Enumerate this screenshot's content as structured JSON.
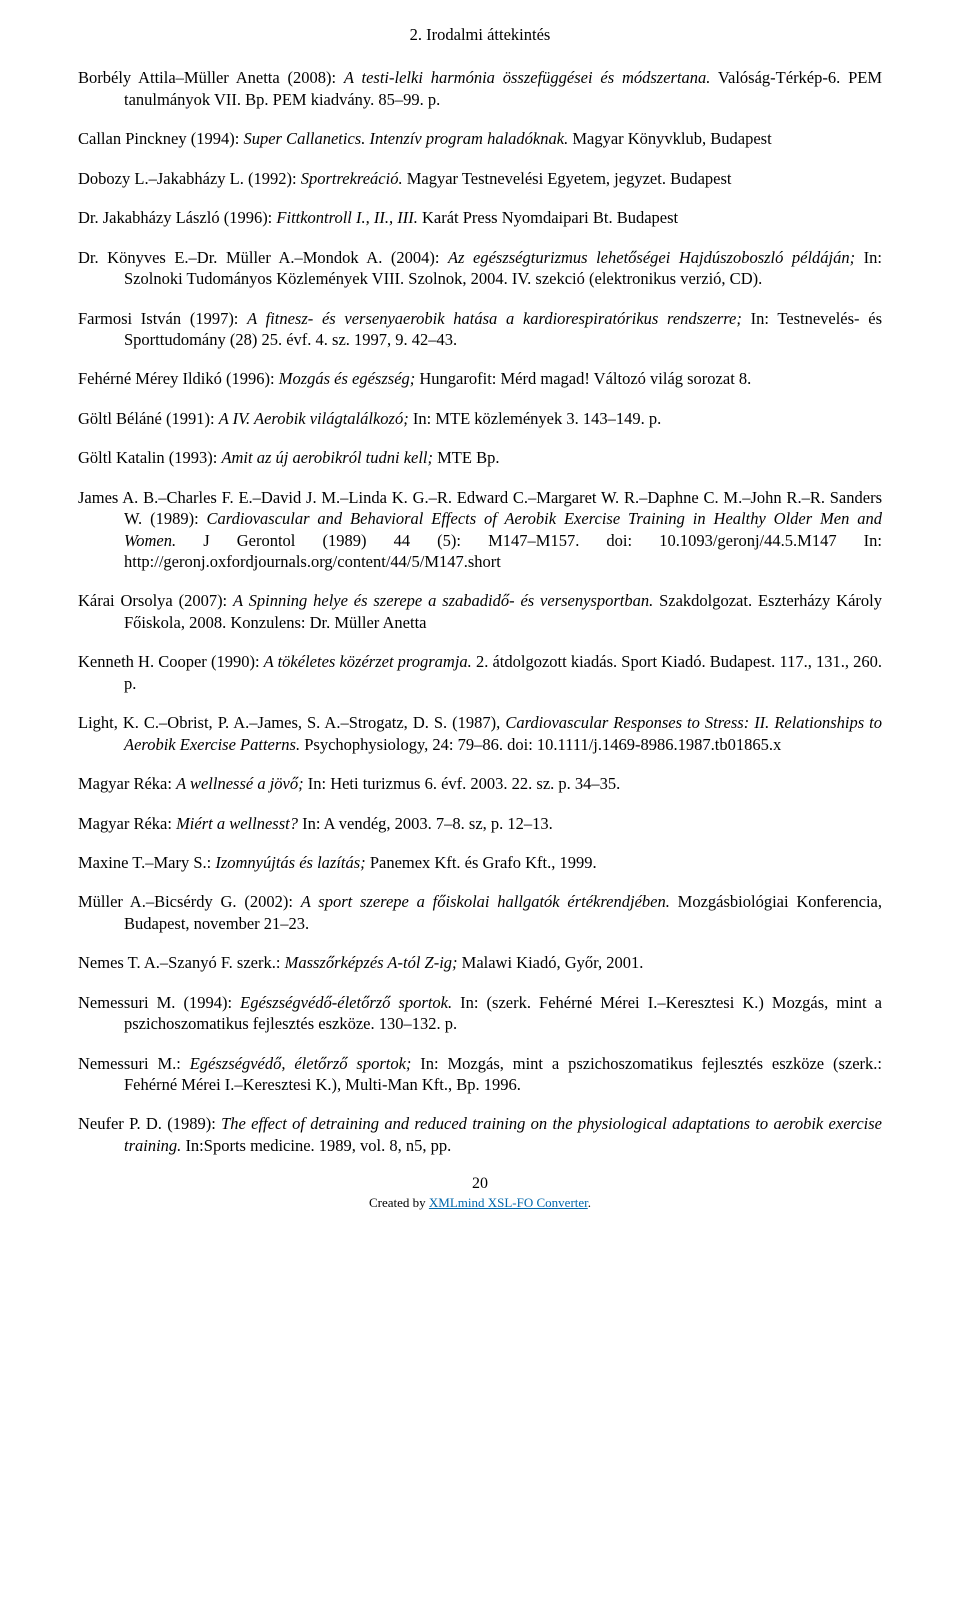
{
  "chapter_title": "2. Irodalmi áttekintés",
  "refs": [
    {
      "pre": "Borbély Attila–Müller Anetta (2008): ",
      "ital": "A testi-lelki harmónia összefüggései és módszertana.",
      "post": " Valóság-Térkép-6. PEM tanulmányok VII. Bp. PEM kiadvány. 85–99. p."
    },
    {
      "pre": "Callan Pinckney (1994): ",
      "ital": "Super Callanetics. Intenzív program haladóknak.",
      "post": " Magyar Könyvklub, Budapest"
    },
    {
      "pre": "Dobozy L.–Jakabházy L. (1992): ",
      "ital": "Sportrekreáció.",
      "post": " Magyar Testnevelési Egyetem, jegyzet. Budapest"
    },
    {
      "pre": "Dr. Jakabházy László (1996): ",
      "ital": "Fittkontroll I., II., III.",
      "post": " Karát Press Nyomdaipari Bt. Budapest"
    },
    {
      "pre": "Dr. Könyves E.–Dr. Müller A.–Mondok A. (2004): ",
      "ital": "Az egészségturizmus lehetőségei Hajdúszoboszló példáján;",
      "post": " In: Szolnoki Tudományos Közlemények VIII. Szolnok, 2004. IV. szekció (elektronikus verzió, CD)."
    },
    {
      "pre": "Farmosi István (1997): ",
      "ital": "A fitnesz- és versenyaerobik hatása a kardiorespiratórikus rendszerre;",
      "post": " In: Testnevelés- és Sporttudomány (28) 25. évf. 4. sz. 1997, 9. 42–43."
    },
    {
      "pre": "Fehérné Mérey Ildikó (1996): ",
      "ital": "Mozgás és egészség;",
      "post": " Hungarofit: Mérd magad! Változó világ sorozat 8."
    },
    {
      "pre": "Göltl Béláné (1991): ",
      "ital": "A IV. Aerobik világtalálkozó;",
      "post": " In: MTE közlemények 3. 143–149. p."
    },
    {
      "pre": "Göltl Katalin (1993): ",
      "ital": "Amit az új aerobikról tudni kell;",
      "post": " MTE Bp."
    },
    {
      "pre": "James A. B.–Charles F. E.–David J. M.–Linda K. G.–R. Edward C.–Margaret W. R.–Daphne C. M.–John R.–R. Sanders W. (1989): ",
      "ital": "Cardiovascular and Behavioral Effects of Aerobik Exercise Training in Healthy Older Men and Women.",
      "post": " J Gerontol (1989) 44 (5): M147–M157. doi: 10.1093/geronj/44.5.M147 In: http://geronj.oxfordjournals.org/content/44/5/M147.short"
    },
    {
      "pre": "Kárai Orsolya (2007): ",
      "ital": "A Spinning helye és szerepe a szabadidő- és versenysportban.",
      "post": " Szakdolgozat. Eszterházy Károly Főiskola, 2008. Konzulens: Dr. Müller Anetta"
    },
    {
      "pre": "Kenneth H. Cooper (1990): ",
      "ital": "A tökéletes közérzet programja.",
      "post": " 2. átdolgozott kiadás. Sport Kiadó. Budapest. 117., 131., 260. p."
    },
    {
      "pre": "Light, K. C.–Obrist, P. A.–James, S. A.–Strogatz, D. S. (1987), ",
      "ital": "Cardiovascular Responses to Stress: II. Relationships to Aerobik Exercise Patterns.",
      "post": " Psychophysiology, 24: 79–86. doi: 10.1111/j.1469-8986.1987.tb01865.x"
    },
    {
      "pre": "Magyar Réka: ",
      "ital": "A wellnessé a jövő;",
      "post": " In: Heti turizmus 6. évf. 2003. 22. sz. p. 34–35."
    },
    {
      "pre": "Magyar Réka: ",
      "ital": "Miért a wellnesst?",
      "post": " In: A vendég, 2003. 7–8. sz, p. 12–13."
    },
    {
      "pre": "Maxine T.–Mary S.: ",
      "ital": "Izomnyújtás és lazítás;",
      "post": " Panemex Kft. és Grafo Kft., 1999."
    },
    {
      "pre": "Müller A.–Bicsérdy G. (2002): ",
      "ital": "A sport szerepe a főiskolai hallgatók értékrendjében.",
      "post": " Mozgásbiológiai Konferencia, Budapest, november 21–23."
    },
    {
      "pre": "Nemes T. A.–Szanyó F. szerk.: ",
      "ital": "Masszőrképzés A-tól Z-ig;",
      "post": " Malawi Kiadó, Győr, 2001."
    },
    {
      "pre": "Nemessuri M. (1994): ",
      "ital": "Egészségvédő-életőrző sportok.",
      "post": " In: (szerk. Fehérné Mérei I.–Keresztesi K.) Mozgás, mint a pszichoszomatikus fejlesztés eszköze. 130–132. p."
    },
    {
      "pre": "Nemessuri M.: ",
      "ital": "Egészségvédő, életőrző sportok;",
      "post": " In: Mozgás, mint a pszichoszomatikus fejlesztés eszköze (szerk.: Fehérné Mérei I.–Keresztesi K.), Multi-Man Kft., Bp. 1996."
    },
    {
      "pre": "Neufer P. D. (1989): ",
      "ital": "The effect of detraining and reduced training on the physiological adaptations to aerobik exercise training.",
      "post": " In:Sports medicine. 1989, vol. 8, n5, pp."
    }
  ],
  "page_number": "20",
  "credit_prefix": "Created by ",
  "credit_link_text": "XMLmind XSL-FO Converter",
  "credit_suffix": "."
}
